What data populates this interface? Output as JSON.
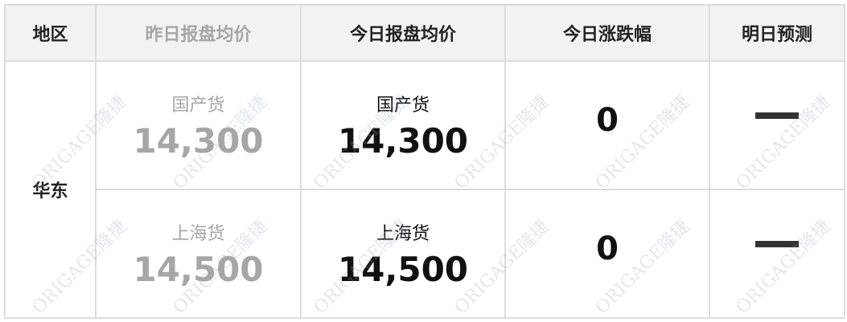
{
  "headers": [
    "地区",
    "昨日报盘均价",
    "今日报盘均价",
    "今日涨跌幅",
    "明日预测"
  ],
  "region": "华东",
  "rows": [
    {
      "type": "国产货",
      "yesterday": "14,300",
      "today": "14,300",
      "change": "0",
      "forecast": "—"
    },
    {
      "type": "上海货",
      "yesterday": "14,500",
      "today": "14,500",
      "change": "0",
      "forecast": "—"
    }
  ],
  "watermark": "ORIGAGE隆捷",
  "colors": {
    "header_bg": "#f2f2f2",
    "muted": "#a6a6a6",
    "border": "#dcdcdc"
  }
}
